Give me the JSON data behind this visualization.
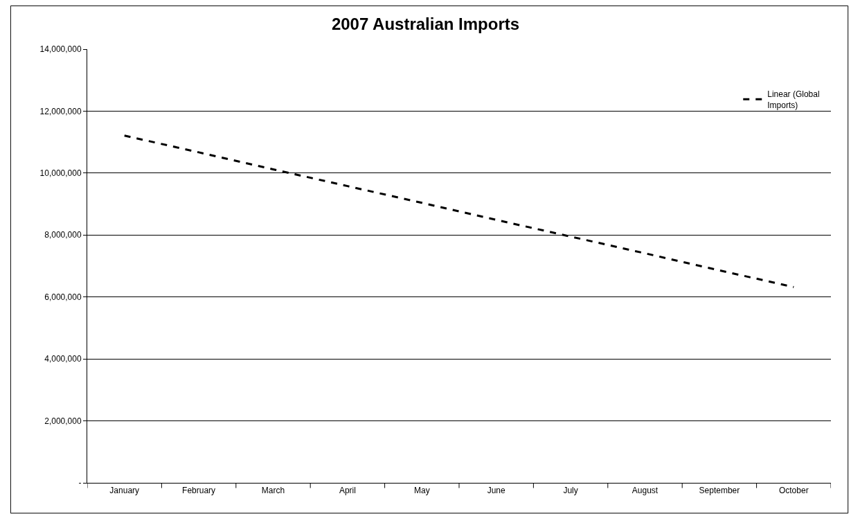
{
  "chart_data": {
    "type": "line",
    "title": "2007 Australian Imports",
    "categories": [
      "January",
      "February",
      "March",
      "April",
      "May",
      "June",
      "July",
      "August",
      "September",
      "October"
    ],
    "series": [
      {
        "name": "Linear (Global Imports)",
        "color": "#000000",
        "line_style": "dashed",
        "marker": "none",
        "values": [
          11210000,
          10670000,
          10120000,
          9580000,
          9040000,
          8490000,
          7950000,
          7410000,
          6860000,
          6320000
        ]
      }
    ],
    "ylim": [
      0,
      14000000
    ],
    "yticks": [
      {
        "value": 0,
        "label": "-"
      },
      {
        "value": 2000000,
        "label": "2,000,000"
      },
      {
        "value": 4000000,
        "label": "4,000,000"
      },
      {
        "value": 6000000,
        "label": "6,000,000"
      },
      {
        "value": 8000000,
        "label": "8,000,000"
      },
      {
        "value": 10000000,
        "label": "10,000,000"
      },
      {
        "value": 12000000,
        "label": "12,000,000"
      },
      {
        "value": 14000000,
        "label": "14,000,000"
      }
    ],
    "grid": "y",
    "legend": "top right"
  }
}
